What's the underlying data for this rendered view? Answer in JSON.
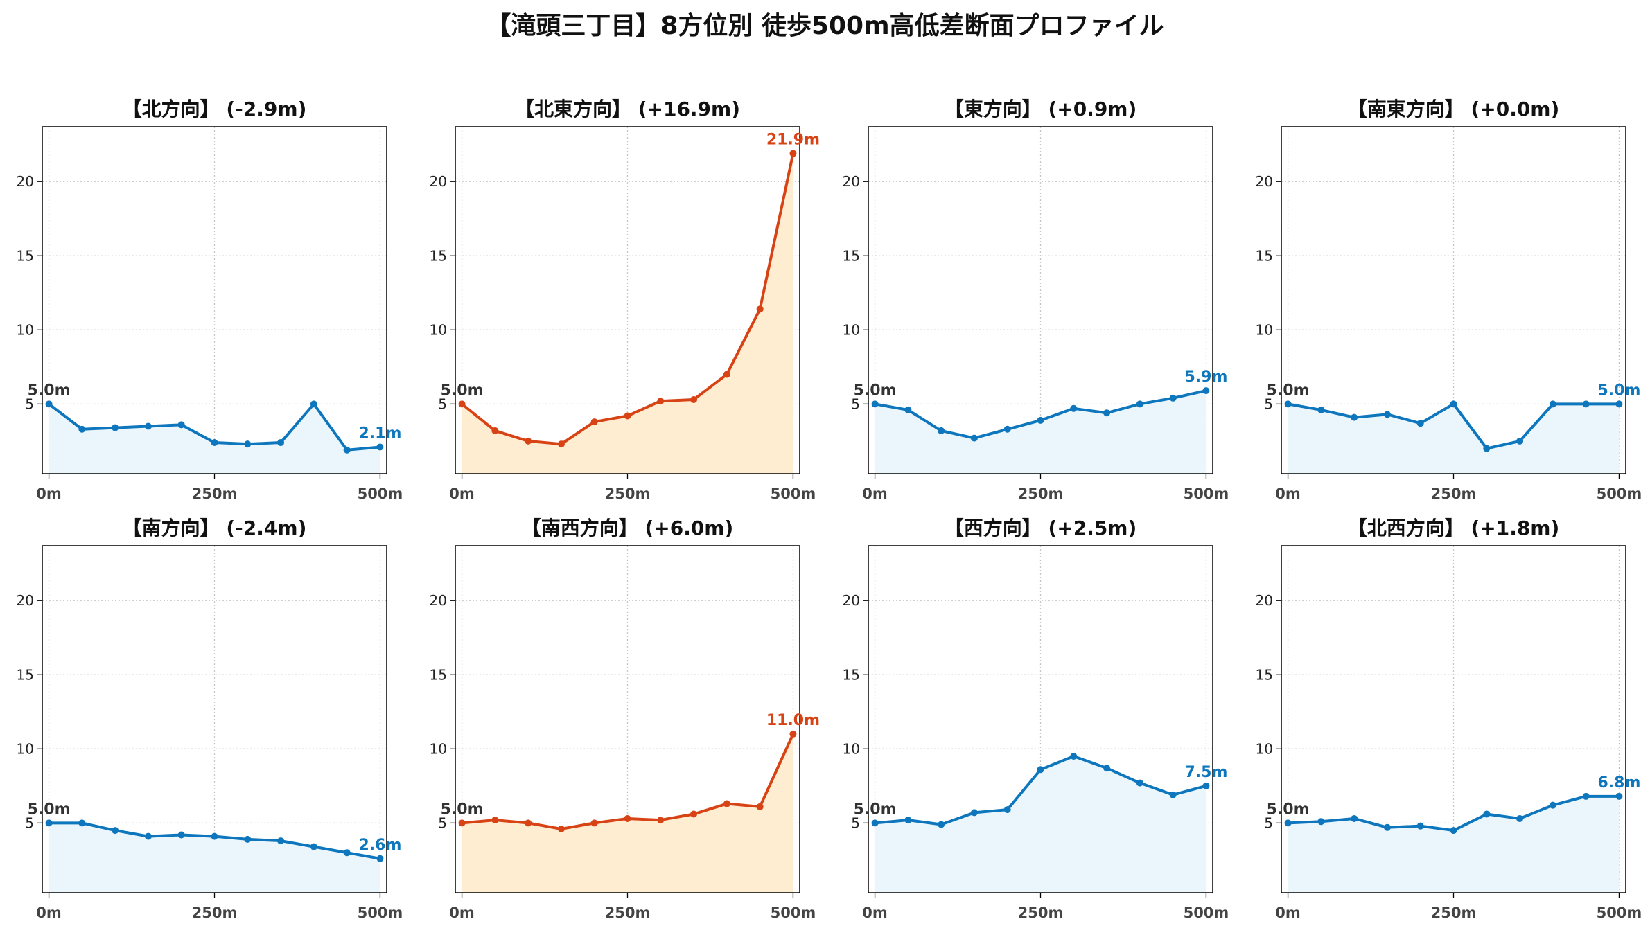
{
  "title": "【滝頭三丁目】8方位別 徒歩500m高低差断面プロファイル",
  "colors": {
    "uphill_line": "#d84315",
    "uphill_fill": "#ffedd2",
    "flat_line": "#0d76bc",
    "flat_fill": "#eaf6fc",
    "start_label": "#333333"
  },
  "chart_data": [
    {
      "type": "area",
      "title": "【北方向】 (-2.9m)",
      "x": [
        0,
        50,
        100,
        150,
        200,
        250,
        300,
        350,
        400,
        450,
        500
      ],
      "values": [
        5.0,
        3.3,
        3.4,
        3.5,
        3.6,
        2.4,
        2.3,
        2.4,
        5.0,
        1.9,
        2.1
      ],
      "start_label": "5.0m",
      "end_label": "2.1m",
      "style": "flat",
      "xticks": [
        "0m",
        "250m",
        "500m"
      ],
      "yticks": [
        "5",
        "10",
        "15",
        "20"
      ],
      "ylim": [
        0.3,
        23.7
      ],
      "xlim": [
        -10,
        510
      ],
      "grid": true
    },
    {
      "type": "area",
      "title": "【北東方向】 (+16.9m)",
      "x": [
        0,
        50,
        100,
        150,
        200,
        250,
        300,
        350,
        400,
        450,
        500
      ],
      "values": [
        5.0,
        3.2,
        2.5,
        2.3,
        3.8,
        4.2,
        5.2,
        5.3,
        7.0,
        11.4,
        21.9
      ],
      "start_label": "5.0m",
      "end_label": "21.9m",
      "style": "uphill",
      "xticks": [
        "0m",
        "250m",
        "500m"
      ],
      "yticks": [
        "5",
        "10",
        "15",
        "20"
      ],
      "ylim": [
        0.3,
        23.7
      ],
      "xlim": [
        -10,
        510
      ],
      "grid": true
    },
    {
      "type": "area",
      "title": "【東方向】 (+0.9m)",
      "x": [
        0,
        50,
        100,
        150,
        200,
        250,
        300,
        350,
        400,
        450,
        500
      ],
      "values": [
        5.0,
        4.6,
        3.2,
        2.7,
        3.3,
        3.9,
        4.7,
        4.4,
        5.0,
        5.4,
        5.9
      ],
      "start_label": "5.0m",
      "end_label": "5.9m",
      "style": "flat",
      "xticks": [
        "0m",
        "250m",
        "500m"
      ],
      "yticks": [
        "5",
        "10",
        "15",
        "20"
      ],
      "ylim": [
        0.3,
        23.7
      ],
      "xlim": [
        -10,
        510
      ],
      "grid": true
    },
    {
      "type": "area",
      "title": "【南東方向】 (+0.0m)",
      "x": [
        0,
        50,
        100,
        150,
        200,
        250,
        300,
        350,
        400,
        450,
        500
      ],
      "values": [
        5.0,
        4.6,
        4.1,
        4.3,
        3.7,
        5.0,
        2.0,
        2.5,
        5.0,
        5.0,
        5.0
      ],
      "start_label": "5.0m",
      "end_label": "5.0m",
      "style": "flat",
      "xticks": [
        "0m",
        "250m",
        "500m"
      ],
      "yticks": [
        "5",
        "10",
        "15",
        "20"
      ],
      "ylim": [
        0.3,
        23.7
      ],
      "xlim": [
        -10,
        510
      ],
      "grid": true
    },
    {
      "type": "area",
      "title": "【南方向】 (-2.4m)",
      "x": [
        0,
        50,
        100,
        150,
        200,
        250,
        300,
        350,
        400,
        450,
        500
      ],
      "values": [
        5.0,
        5.0,
        4.5,
        4.1,
        4.2,
        4.1,
        3.9,
        3.8,
        3.4,
        3.0,
        2.6
      ],
      "start_label": "5.0m",
      "end_label": "2.6m",
      "style": "flat",
      "xticks": [
        "0m",
        "250m",
        "500m"
      ],
      "yticks": [
        "5",
        "10",
        "15",
        "20"
      ],
      "ylim": [
        0.3,
        23.7
      ],
      "xlim": [
        -10,
        510
      ],
      "grid": true
    },
    {
      "type": "area",
      "title": "【南西方向】 (+6.0m)",
      "x": [
        0,
        50,
        100,
        150,
        200,
        250,
        300,
        350,
        400,
        450,
        500
      ],
      "values": [
        5.0,
        5.2,
        5.0,
        4.6,
        5.0,
        5.3,
        5.2,
        5.6,
        6.3,
        6.1,
        11.0
      ],
      "start_label": "5.0m",
      "end_label": "11.0m",
      "style": "uphill",
      "xticks": [
        "0m",
        "250m",
        "500m"
      ],
      "yticks": [
        "5",
        "10",
        "15",
        "20"
      ],
      "ylim": [
        0.3,
        23.7
      ],
      "xlim": [
        -10,
        510
      ],
      "grid": true
    },
    {
      "type": "area",
      "title": "【西方向】 (+2.5m)",
      "x": [
        0,
        50,
        100,
        150,
        200,
        250,
        300,
        350,
        400,
        450,
        500
      ],
      "values": [
        5.0,
        5.2,
        4.9,
        5.7,
        5.9,
        8.6,
        9.5,
        8.7,
        7.7,
        6.9,
        7.5
      ],
      "start_label": "5.0m",
      "end_label": "7.5m",
      "style": "flat",
      "xticks": [
        "0m",
        "250m",
        "500m"
      ],
      "yticks": [
        "5",
        "10",
        "15",
        "20"
      ],
      "ylim": [
        0.3,
        23.7
      ],
      "xlim": [
        -10,
        510
      ],
      "grid": true
    },
    {
      "type": "area",
      "title": "【北西方向】 (+1.8m)",
      "x": [
        0,
        50,
        100,
        150,
        200,
        250,
        300,
        350,
        400,
        450,
        500
      ],
      "values": [
        5.0,
        5.1,
        5.3,
        4.7,
        4.8,
        4.5,
        5.6,
        5.3,
        6.2,
        6.8,
        6.8
      ],
      "start_label": "5.0m",
      "end_label": "6.8m",
      "style": "flat",
      "xticks": [
        "0m",
        "250m",
        "500m"
      ],
      "yticks": [
        "5",
        "10",
        "15",
        "20"
      ],
      "ylim": [
        0.3,
        23.7
      ],
      "xlim": [
        -10,
        510
      ],
      "grid": true
    }
  ]
}
